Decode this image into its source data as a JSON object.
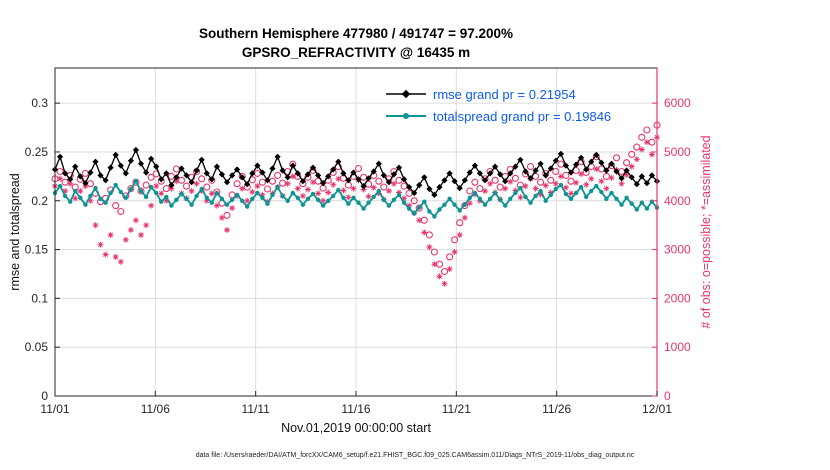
{
  "title": {
    "line1": "Southern Hemisphere 477980 / 491747 = 97.200%",
    "line2": "GPSRO_REFRACTIVITY @ 16435 m"
  },
  "legend": [
    {
      "label": "rmse grand pr = 0.21954",
      "marker": "diamond",
      "color": "#000000"
    },
    {
      "label": "totalspread grand pr = 0.19846",
      "marker": "circle",
      "color": "#0d9494"
    }
  ],
  "axes": {
    "left": {
      "label": "rmse and totalspread",
      "tick_values": [
        0,
        0.05,
        0.1,
        0.15,
        0.2,
        0.25,
        0.3
      ],
      "tick_labels": [
        "0",
        "0.05",
        "0.1",
        "0.15",
        "0.2",
        "0.25",
        "0.3"
      ],
      "max": 0.336
    },
    "right": {
      "label": "# of obs: o=possible; *=assimilated",
      "tick_values": [
        0,
        1000,
        2000,
        3000,
        4000,
        5000,
        6000
      ],
      "tick_labels": [
        "0",
        "1000",
        "2000",
        "3000",
        "4000",
        "5000",
        "6000"
      ],
      "max": 6720
    },
    "x": {
      "label": "Nov.01,2019 00:00:00 start",
      "tick_days": [
        0,
        5,
        10,
        15,
        20,
        25,
        30
      ],
      "tick_labels": [
        "11/01",
        "11/06",
        "11/11",
        "11/16",
        "11/21",
        "11/26",
        "12/01"
      ],
      "range_days": [
        0,
        30
      ]
    }
  },
  "caption": "data file: /Users/raeder/DAI/ATM_forcXX/CAM6_setup/f.e21.FHIST_BGC.f09_025.CAM6assim.011/Diags_NTrS_2019-11/obs_diag_output.nc",
  "colors": {
    "rmse": "#000000",
    "totalspread": "#0d9494",
    "obs": "#e8356e",
    "legend_text": "#0d5be8",
    "grid": "#dcdcdc",
    "axis": "#262626"
  },
  "chart_data": {
    "type": "line",
    "x_start_day": 0,
    "x_step_days": 0.25210084,
    "x_unit": "days since Nov.01,2019 00:00:00",
    "series": [
      {
        "name": "rmse",
        "axis": "left",
        "marker": "diamond",
        "grand_mean": 0.21954,
        "values": [
          0.232,
          0.245,
          0.228,
          0.222,
          0.235,
          0.225,
          0.218,
          0.229,
          0.24,
          0.226,
          0.221,
          0.234,
          0.247,
          0.236,
          0.228,
          0.241,
          0.252,
          0.238,
          0.229,
          0.243,
          0.235,
          0.222,
          0.228,
          0.216,
          0.224,
          0.233,
          0.226,
          0.219,
          0.231,
          0.242,
          0.228,
          0.222,
          0.235,
          0.227,
          0.219,
          0.226,
          0.232,
          0.224,
          0.217,
          0.228,
          0.236,
          0.229,
          0.221,
          0.233,
          0.245,
          0.231,
          0.224,
          0.236,
          0.228,
          0.22,
          0.227,
          0.234,
          0.226,
          0.218,
          0.225,
          0.232,
          0.24,
          0.228,
          0.221,
          0.229,
          0.222,
          0.215,
          0.223,
          0.23,
          0.238,
          0.226,
          0.219,
          0.227,
          0.234,
          0.222,
          0.214,
          0.208,
          0.216,
          0.224,
          0.212,
          0.206,
          0.214,
          0.221,
          0.228,
          0.22,
          0.213,
          0.221,
          0.229,
          0.236,
          0.228,
          0.221,
          0.228,
          0.235,
          0.227,
          0.22,
          0.228,
          0.235,
          0.242,
          0.23,
          0.223,
          0.231,
          0.238,
          0.226,
          0.233,
          0.241,
          0.248,
          0.236,
          0.229,
          0.237,
          0.244,
          0.232,
          0.24,
          0.247,
          0.239,
          0.231,
          0.238,
          0.23,
          0.223,
          0.231,
          0.224,
          0.217,
          0.225,
          0.218,
          0.226,
          0.22
        ]
      },
      {
        "name": "totalspread",
        "axis": "left",
        "marker": "circle",
        "grand_mean": 0.19846,
        "values": [
          0.208,
          0.215,
          0.205,
          0.199,
          0.21,
          0.203,
          0.196,
          0.205,
          0.213,
          0.202,
          0.198,
          0.208,
          0.216,
          0.209,
          0.203,
          0.212,
          0.22,
          0.21,
          0.204,
          0.214,
          0.208,
          0.199,
          0.204,
          0.195,
          0.201,
          0.207,
          0.202,
          0.196,
          0.205,
          0.212,
          0.203,
          0.198,
          0.208,
          0.202,
          0.196,
          0.201,
          0.206,
          0.2,
          0.194,
          0.202,
          0.208,
          0.203,
          0.197,
          0.206,
          0.214,
          0.205,
          0.2,
          0.208,
          0.203,
          0.196,
          0.202,
          0.207,
          0.201,
          0.195,
          0.2,
          0.205,
          0.211,
          0.203,
          0.197,
          0.203,
          0.198,
          0.192,
          0.198,
          0.204,
          0.21,
          0.201,
          0.195,
          0.201,
          0.206,
          0.198,
          0.192,
          0.187,
          0.193,
          0.199,
          0.189,
          0.184,
          0.191,
          0.196,
          0.202,
          0.196,
          0.19,
          0.196,
          0.203,
          0.208,
          0.202,
          0.196,
          0.202,
          0.208,
          0.201,
          0.195,
          0.202,
          0.208,
          0.213,
          0.204,
          0.198,
          0.205,
          0.21,
          0.2,
          0.206,
          0.212,
          0.216,
          0.207,
          0.202,
          0.208,
          0.214,
          0.204,
          0.21,
          0.215,
          0.209,
          0.202,
          0.208,
          0.202,
          0.196,
          0.203,
          0.197,
          0.191,
          0.198,
          0.192,
          0.199,
          0.193
        ]
      },
      {
        "name": "possible",
        "axis": "right",
        "marker": "open-circle",
        "values": [
          4450,
          4600,
          4380,
          4520,
          4280,
          4440,
          4560,
          4350,
          4150,
          3980,
          4050,
          4220,
          3900,
          3780,
          4100,
          4250,
          4380,
          4200,
          4320,
          4480,
          4550,
          4400,
          4250,
          4500,
          4650,
          4420,
          4300,
          4480,
          4600,
          4450,
          4280,
          4420,
          4180,
          3950,
          3700,
          4120,
          4350,
          4500,
          4280,
          4430,
          4560,
          4380,
          4240,
          4400,
          4520,
          4360,
          4600,
          4750,
          4500,
          4350,
          4480,
          4620,
          4400,
          4260,
          4420,
          4580,
          4700,
          4460,
          4320,
          4500,
          4660,
          4480,
          4340,
          4520,
          4400,
          4280,
          4450,
          4600,
          4420,
          4300,
          4150,
          4000,
          3850,
          3600,
          3300,
          2950,
          2700,
          2550,
          2850,
          3200,
          3550,
          3900,
          4200,
          4380,
          4250,
          4450,
          4600,
          4420,
          4280,
          4500,
          4640,
          4460,
          4320,
          4550,
          4700,
          4500,
          4380,
          4560,
          4420,
          4600,
          4750,
          4520,
          4400,
          4620,
          4800,
          4580,
          4700,
          4900,
          4650,
          4500,
          4720,
          4880,
          4600,
          4780,
          4950,
          5100,
          5300,
          5450,
          5200,
          5550
        ]
      },
      {
        "name": "assimilated",
        "axis": "right",
        "marker": "asterisk",
        "values": [
          4300,
          4450,
          4200,
          4350,
          4050,
          4200,
          4300,
          4000,
          3500,
          3100,
          2900,
          3300,
          2850,
          2750,
          3200,
          3400,
          3600,
          3300,
          3500,
          3900,
          4300,
          4150,
          4000,
          4250,
          4400,
          4150,
          4050,
          4200,
          4350,
          4200,
          4000,
          4150,
          3900,
          3650,
          3400,
          3850,
          4100,
          4250,
          4000,
          4180,
          4300,
          4120,
          3980,
          4150,
          4280,
          4100,
          4350,
          4500,
          4250,
          4100,
          4230,
          4380,
          4150,
          4000,
          4170,
          4330,
          4450,
          4210,
          4070,
          4250,
          4420,
          4230,
          4090,
          4270,
          4150,
          4030,
          4200,
          4350,
          4170,
          4050,
          3900,
          3750,
          3600,
          3350,
          3050,
          2700,
          2450,
          2300,
          2600,
          2950,
          3300,
          3650,
          3950,
          4130,
          4000,
          4200,
          4350,
          4170,
          4030,
          4250,
          4390,
          4210,
          4070,
          4300,
          4450,
          4250,
          4130,
          4310,
          4170,
          4350,
          4500,
          4270,
          4150,
          4370,
          4550,
          4330,
          4450,
          4650,
          4400,
          4250,
          4470,
          4630,
          4350,
          4530,
          4700,
          4850,
          5050,
          5200,
          4950,
          5300
        ]
      }
    ]
  }
}
